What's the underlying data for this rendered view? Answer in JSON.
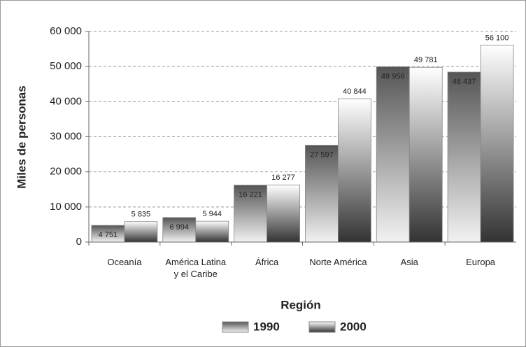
{
  "chart_data": {
    "type": "bar",
    "x_label": "Región",
    "y_label": "Miles de personas",
    "categories": [
      "Oceanía",
      "América Latina y el Caribe",
      "África",
      "Norte América",
      "Asia",
      "Europa"
    ],
    "series": [
      {
        "name": "1990",
        "color": "#555555",
        "values": [
          4751,
          6994,
          16221,
          27597,
          49956,
          48437
        ],
        "value_labels": [
          "4 751",
          "6 994",
          "16 221",
          "27 597",
          "49 956",
          "48 437"
        ]
      },
      {
        "name": "2000",
        "color": "#333333",
        "values": [
          5835,
          5944,
          16277,
          40844,
          49781,
          56100
        ],
        "value_labels": [
          "5 835",
          "5 944",
          "16 277",
          "40 844",
          "49 781",
          "56 100"
        ]
      }
    ],
    "ylim": [
      0,
      60000
    ],
    "yticks": [
      0,
      {
        "value": 10000,
        "label": "10 000"
      },
      {
        "value": 20000,
        "label": "20 000"
      },
      {
        "value": 30000,
        "label": "30 000"
      },
      {
        "value": 40000,
        "label": "40 000"
      },
      {
        "value": 50000,
        "label": "50 000"
      },
      {
        "value": 60000,
        "label": "60 000"
      }
    ],
    "grid": true
  }
}
